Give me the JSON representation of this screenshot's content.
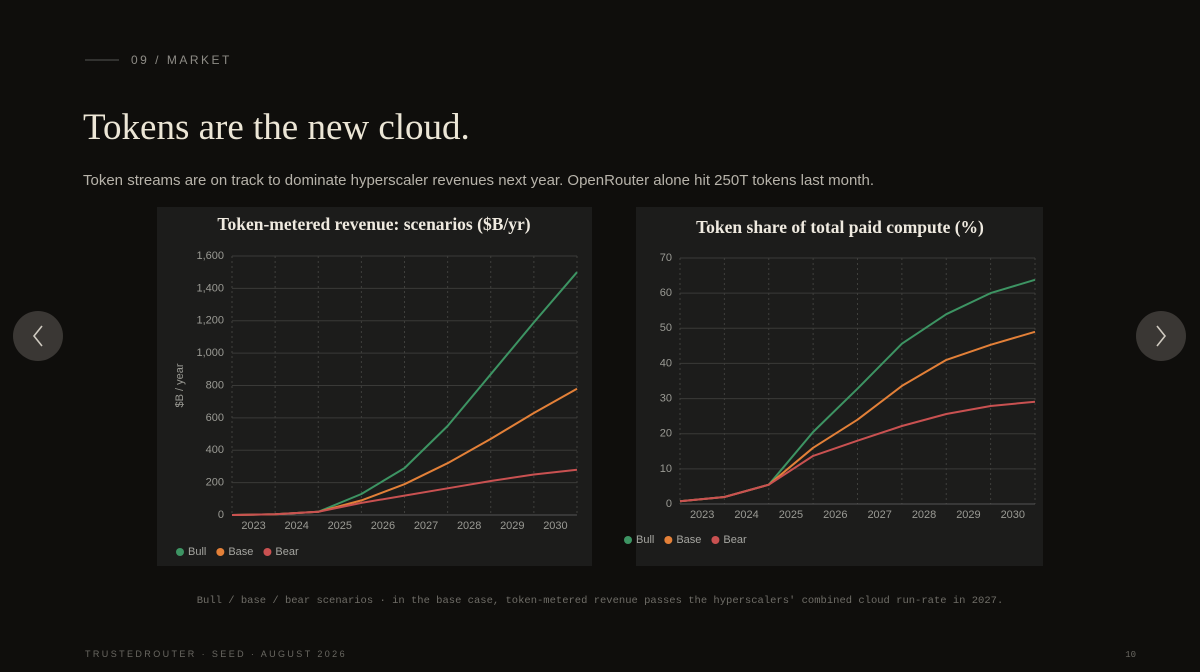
{
  "eyebrow": "09 / MARKET",
  "title": "Tokens are the new cloud.",
  "subtitle": "Token streams are on track to dominate hyperscaler revenues next year. OpenRouter alone hit 250T tokens last month.",
  "caption": "Bull / base / bear scenarios · in the base case, token-metered revenue passes the hyperscalers' combined cloud run-rate in 2027.",
  "footer": {
    "left": "TRUSTEDROUTER · SEED · AUGUST 2026",
    "page": "10"
  },
  "chart_data": [
    {
      "type": "line",
      "title": "Token-metered revenue: scenarios ($B/yr)",
      "y_label": "$B / year",
      "x": [
        2022.5,
        2023.5,
        2024.5,
        2025.5,
        2026.5,
        2027.5,
        2028.5,
        2029.5,
        2030.5
      ],
      "xlim": [
        2022.5,
        2030.5
      ],
      "xticks": [
        2023,
        2024,
        2025,
        2026,
        2027,
        2028,
        2029,
        2030
      ],
      "ylim": [
        0,
        1600
      ],
      "yticks": [
        0,
        200,
        400,
        600,
        800,
        {
          "value": 1000,
          "label": "1,000"
        },
        {
          "value": 1200,
          "label": "1,200"
        },
        {
          "value": 1400,
          "label": "1,400"
        },
        {
          "value": 1600,
          "label": "1,600"
        }
      ],
      "grid": true,
      "legend": "bottom-left",
      "series": [
        {
          "name": "Bull",
          "color": "#3d9463",
          "values": [
            0,
            5,
            20,
            130,
            290,
            550,
            870,
            1190,
            1500
          ]
        },
        {
          "name": "Base",
          "color": "#e38038",
          "values": [
            0,
            5,
            20,
            90,
            190,
            320,
            470,
            630,
            780
          ]
        },
        {
          "name": "Bear",
          "color": "#c95151",
          "values": [
            0,
            5,
            20,
            75,
            120,
            165,
            210,
            250,
            280
          ]
        }
      ]
    },
    {
      "type": "line",
      "title": "Token share of total paid compute (%)",
      "x": [
        2022.5,
        2023.5,
        2024.5,
        2025.5,
        2026.5,
        2027.5,
        2028.5,
        2029.5,
        2030.5
      ],
      "xlim": [
        2022.5,
        2030.5
      ],
      "xticks": [
        2023,
        2024,
        2025,
        2026,
        2027,
        2028,
        2029,
        2030
      ],
      "ylim": [
        0,
        70
      ],
      "yticks": [
        0,
        10,
        20,
        30,
        40,
        50,
        60,
        70
      ],
      "grid": true,
      "legend": "bottom-left",
      "series": [
        {
          "name": "Bull",
          "color": "#3d9463",
          "values": [
            0.8,
            2,
            5.5,
            20.5,
            32.8,
            45.6,
            54,
            60,
            63.8
          ]
        },
        {
          "name": "Base",
          "color": "#e38038",
          "values": [
            0.8,
            2,
            5.5,
            16,
            24,
            33.6,
            41,
            45.3,
            49
          ]
        },
        {
          "name": "Bear",
          "color": "#c95151",
          "values": [
            0.8,
            2,
            5.5,
            13.7,
            18,
            22.2,
            25.6,
            27.9,
            29.1
          ]
        }
      ]
    }
  ]
}
